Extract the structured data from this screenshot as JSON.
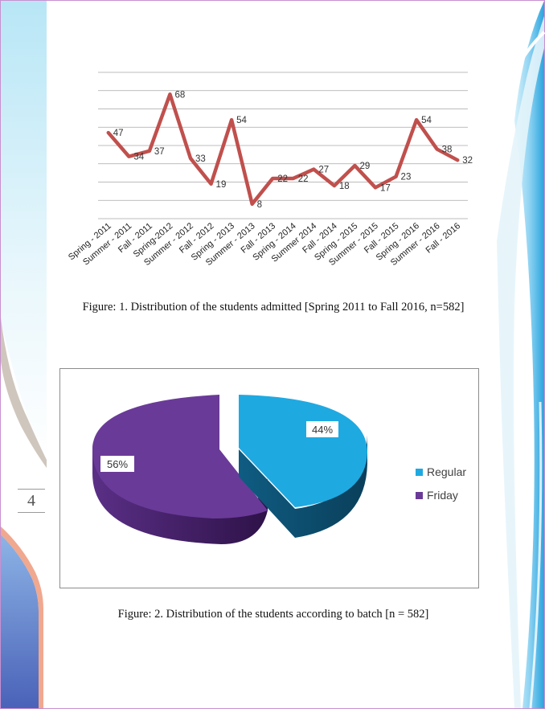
{
  "page": {
    "number": "4"
  },
  "figure1": {
    "caption": "Figure: 1. Distribution of the students admitted [Spring 2011 to Fall 2016, n=582]",
    "chart_data": {
      "type": "line",
      "categories": [
        "Spring - 2011",
        "Summer - 2011",
        "Fall - 2011",
        "Spring-2012",
        "Summer - 2012",
        "Fall - 2012",
        "Spring - 2013",
        "Summer - 2013",
        "Fall - 2013",
        "Spring - 2014",
        "Summer 2014",
        "Fall - 2014",
        "Spring - 2015",
        "Summer - 2015",
        "Fall - 2015",
        "Spring - 2016",
        "Summer - 2016",
        "Fall - 2016"
      ],
      "values": [
        47,
        34,
        37,
        68,
        33,
        19,
        54,
        8,
        22,
        22,
        27,
        18,
        29,
        17,
        23,
        54,
        38,
        32
      ],
      "ylim": [
        0,
        80
      ],
      "grid": true,
      "line_color": "#c0504d",
      "title": "",
      "xlabel": "",
      "ylabel": ""
    }
  },
  "figure2": {
    "caption": "Figure: 2. Distribution of the students according to batch [n = 582]",
    "chart_data": {
      "type": "pie",
      "labels": [
        "Regular",
        "Friday"
      ],
      "values": [
        44,
        56
      ],
      "data_labels": [
        "44%",
        "56%"
      ],
      "colors": [
        "#1fa9e1",
        "#6a3a98"
      ],
      "legend_position": "right",
      "exploded": "Regular",
      "style": "3d"
    }
  }
}
